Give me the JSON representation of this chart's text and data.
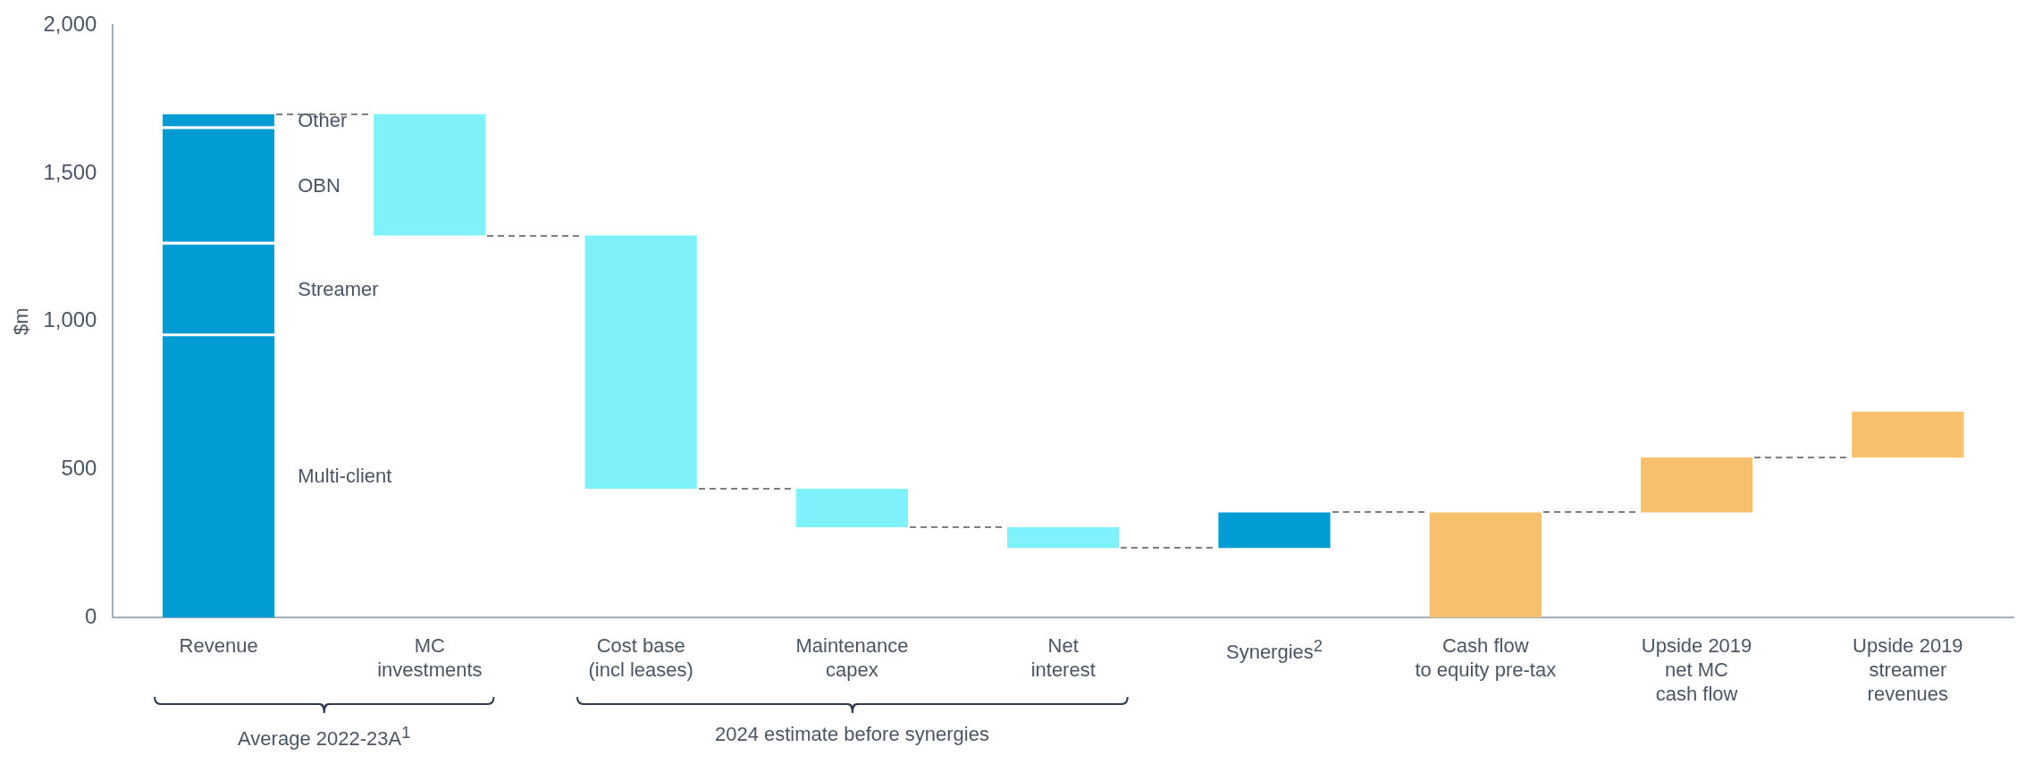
{
  "chart_data": {
    "type": "bar",
    "stacked": true,
    "ylabel": "$m",
    "categories": [
      "Revenue",
      "MC\ninvestments",
      "Cost base\n(incl leases)",
      "Maintenance\ncapex",
      "Net\ninterest",
      "Synergies$^{2}$",
      "Cash flow\nto equity pre-tax",
      "Upside 2019\nnet MC\ncash flow",
      "Upside 2019\nstreamer\nrevenues"
    ],
    "series": [
      {
        "name": "Multi-client",
        "color": "#009cd3",
        "values": [
          950,
          null,
          null,
          null,
          null,
          null,
          null,
          null,
          null
        ]
      },
      {
        "name": "Streamer",
        "color": "#009cd3",
        "values": [
          310,
          null,
          null,
          null,
          null,
          null,
          null,
          null,
          null
        ]
      },
      {
        "name": "OBN",
        "color": "#009cd3",
        "values": [
          390,
          null,
          null,
          null,
          null,
          null,
          null,
          null,
          null
        ]
      },
      {
        "name": "Other",
        "color": "#009cd3",
        "values": [
          50,
          null,
          null,
          null,
          null,
          null,
          null,
          null,
          null
        ]
      },
      {
        "colors": [
          "#009cd3",
          "#7ff1fa",
          "#7ff1fa",
          "#7ff1fa",
          "#7ff1fa",
          "#009cd3",
          "#f7c06d",
          "#f7c06d",
          "#f7c06d"
        ],
        "base": [
          null,
          1700,
          1290,
          435,
          305,
          235,
          0,
          355,
          540
        ],
        "values": [
          null,
          -410,
          -855,
          -130,
          -70,
          120,
          355,
          185,
          155
        ]
      }
    ],
    "ylim": [
      0,
      2000
    ],
    "yticks": [
      {
        "value": 0,
        "label": "0"
      },
      {
        "value": 500,
        "label": "500"
      },
      {
        "value": 1000,
        "label": "1,000"
      },
      {
        "value": 1500,
        "label": "1,500"
      },
      {
        "value": 2000,
        "label": "2,000"
      }
    ],
    "grid": false,
    "legend": false,
    "annotations": [
      "Average 2022-23A$^{1}$",
      "2024 estimate before synergies"
    ]
  }
}
